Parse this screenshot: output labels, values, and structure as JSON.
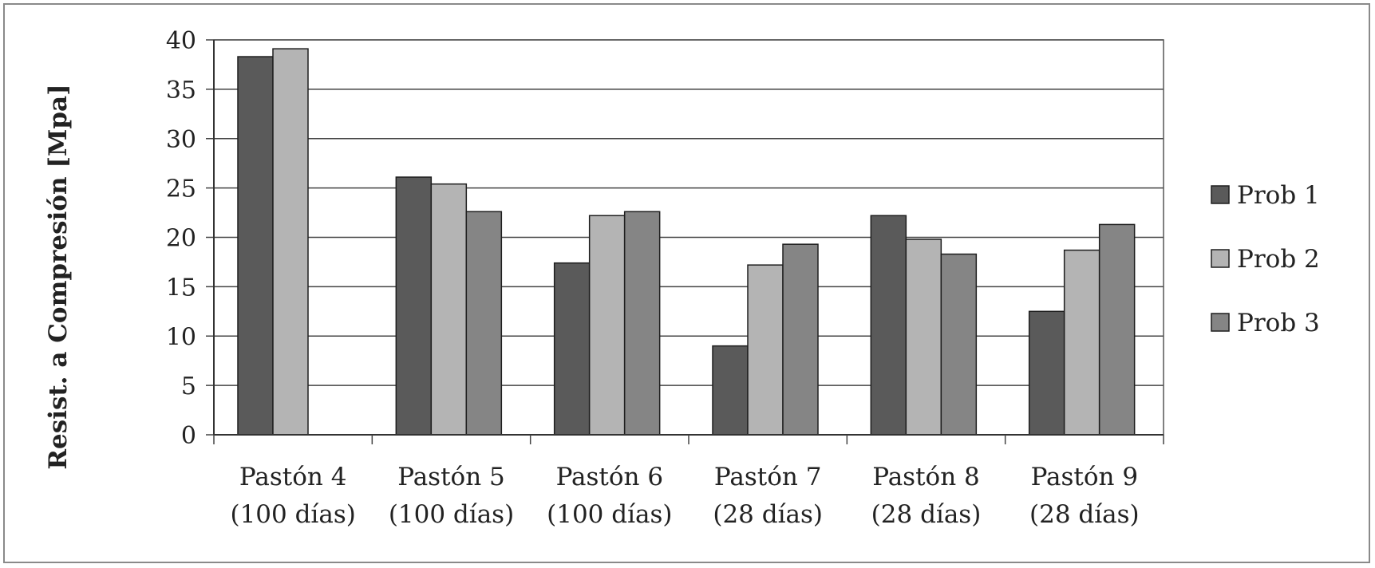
{
  "chart_data": {
    "type": "bar",
    "title": "",
    "xlabel": "",
    "ylabel": "Resist. a Compresión [Mpa]",
    "ylim": [
      0,
      40
    ],
    "yticks": [
      0,
      5,
      10,
      15,
      20,
      25,
      30,
      35,
      40
    ],
    "grid": true,
    "legend_position": "right",
    "categories": [
      [
        "Pastón 4",
        "(100 días)"
      ],
      [
        "Pastón 5",
        "(100 días)"
      ],
      [
        "Pastón 6",
        "(100 días)"
      ],
      [
        "Pastón 7",
        "(28 días)"
      ],
      [
        "Pastón 8",
        "(28 días)"
      ],
      [
        "Pastón 9",
        "(28 días)"
      ]
    ],
    "series": [
      {
        "name": "Prob 1",
        "color": "#5a5a5a",
        "values": [
          38.3,
          26.1,
          17.4,
          9.0,
          22.2,
          12.5
        ]
      },
      {
        "name": "Prob 2",
        "color": "#b4b4b4",
        "values": [
          39.1,
          25.4,
          22.2,
          17.2,
          19.8,
          18.7
        ]
      },
      {
        "name": "Prob 3",
        "color": "#858585",
        "values": [
          null,
          22.6,
          22.6,
          19.3,
          18.3,
          21.3
        ]
      }
    ]
  }
}
